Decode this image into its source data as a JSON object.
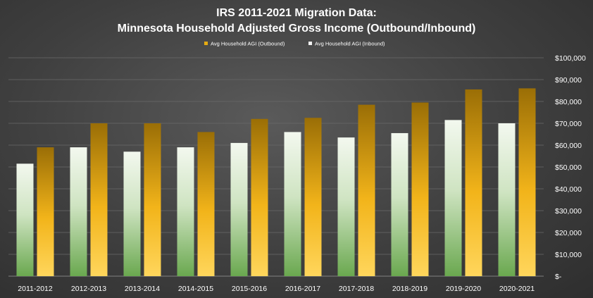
{
  "chart_data": {
    "type": "bar",
    "title": "IRS 2011-2021 Migration Data:",
    "subtitle": "Minnesota Household Adjusted Gross Income (Outbound/Inbound)",
    "categories": [
      "2011-2012",
      "2012-2013",
      "2013-2014",
      "2014-2015",
      "2015-2016",
      "2016-2017",
      "2017-2018",
      "2018-2019",
      "2019-2020",
      "2020-2021"
    ],
    "series": [
      {
        "name": "Avg Household AGI (Inbound)",
        "color": "#d8ecd0",
        "values": [
          51500,
          59000,
          57000,
          59000,
          61000,
          66000,
          63500,
          65500,
          71500,
          70000
        ]
      },
      {
        "name": "Avg Household AGI (Outbound)",
        "color": "#d9a520",
        "values": [
          59000,
          70000,
          70000,
          66000,
          72000,
          72500,
          78500,
          79500,
          85500,
          86000
        ]
      }
    ],
    "legend_order": [
      "Avg Household AGI (Outbound)",
      "Avg Household AGI (Inbound)"
    ],
    "y_ticks": [
      "$-",
      "$10,000",
      "$20,000",
      "$30,000",
      "$40,000",
      "$50,000",
      "$60,000",
      "$70,000",
      "$80,000",
      "$90,000",
      "$100,000"
    ],
    "ylim": [
      0,
      100000
    ],
    "xlabel": "",
    "ylabel": "",
    "grid": true,
    "legend_position": "top"
  }
}
